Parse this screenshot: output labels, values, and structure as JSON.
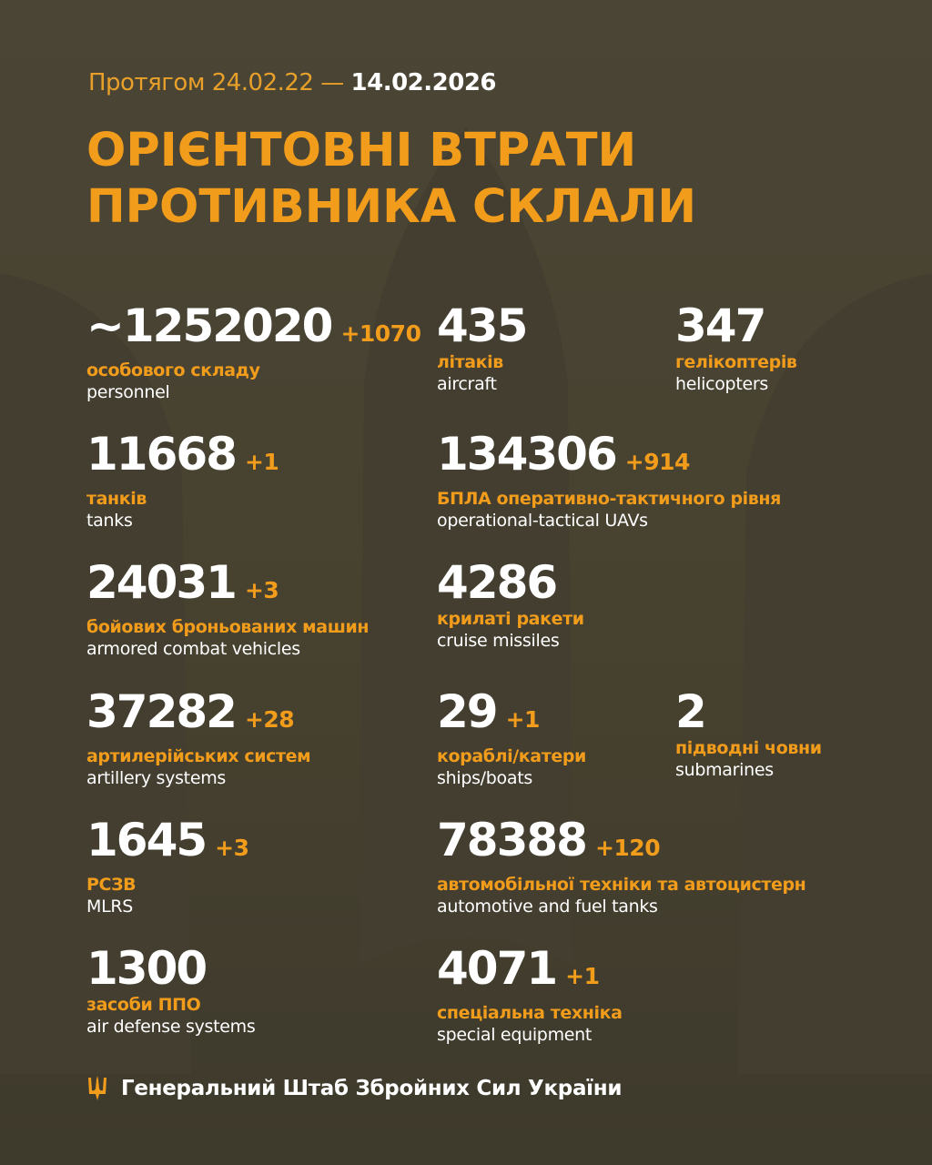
{
  "header": {
    "period_prefix": "Протягом 24.02.22 —",
    "period_end": "14.02.2026",
    "title_line1": "ОРІЄНТОВНІ ВТРАТИ",
    "title_line2": "ПРОТИВНИКА СКЛАЛИ"
  },
  "items": [
    {
      "value": "~1252020",
      "delta": "+1070",
      "ua": "особового складу",
      "en": "personnel"
    },
    {
      "value": "435",
      "delta": "",
      "ua": "літаків",
      "en": "aircraft"
    },
    {
      "value": "347",
      "delta": "",
      "ua": "гелікоптерів",
      "en": "helicopters"
    },
    {
      "value": "11668",
      "delta": "+1",
      "ua": "танків",
      "en": "tanks"
    },
    {
      "value": "134306",
      "delta": "+914",
      "ua": "БПЛА оперативно-тактичного рівня",
      "en": "operational-tactical UAVs"
    },
    {
      "value": "24031",
      "delta": "+3",
      "ua": "бойових броньованих машин",
      "en": "armored combat vehicles"
    },
    {
      "value": "4286",
      "delta": "",
      "ua": "крилаті ракети",
      "en": "cruise missiles"
    },
    {
      "value": "37282",
      "delta": "+28",
      "ua": "артилерійських систем",
      "en": "artillery systems"
    },
    {
      "value": "29",
      "delta": "+1",
      "ua": "кораблі/катери",
      "en": "ships/boats"
    },
    {
      "value": "2",
      "delta": "",
      "ua": "підводні човни",
      "en": "submarines"
    },
    {
      "value": "1645",
      "delta": "+3",
      "ua": "РСЗВ",
      "en": "MLRS"
    },
    {
      "value": "78388",
      "delta": "+120",
      "ua": "автомобільної техніки та автоцистерн",
      "en": "automotive and fuel tanks"
    },
    {
      "value": "1300",
      "delta": "",
      "ua": "засоби ППО",
      "en": "air defense systems"
    },
    {
      "value": "4071",
      "delta": "+1",
      "ua": "спеціальна техніка",
      "en": "special equipment"
    }
  ],
  "footer": {
    "org": "Генеральний Штаб Збройних Сил України",
    "icon": "trident-icon"
  },
  "colors": {
    "accent": "#f29c1c",
    "background": "#4a4535",
    "text": "#ffffff"
  }
}
